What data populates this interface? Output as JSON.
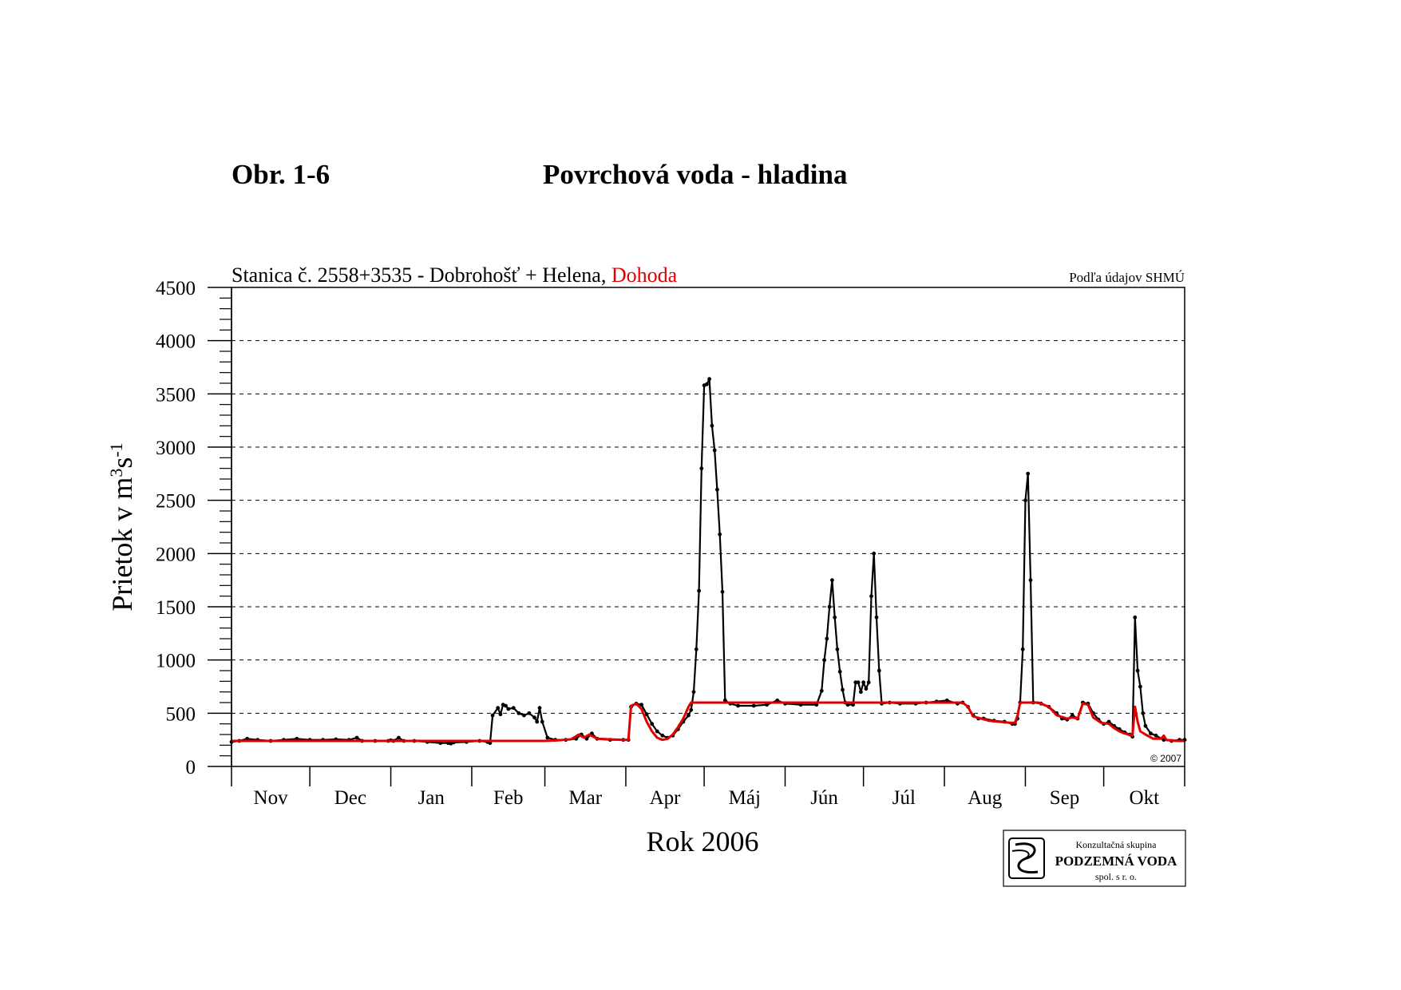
{
  "figure": {
    "number": "Obr. 1-6",
    "title": "Povrchová voda - hladina"
  },
  "chart_data": {
    "type": "line",
    "subtitle_prefix": "Stanica č. 2558+3535 - Dobrohošť + Helena, ",
    "subtitle_highlight": "Dohoda",
    "source_note": "Podľa údajov SHMÚ",
    "copyright": "© 2007",
    "ylabel_main": "Prietok v m",
    "ylabel_sup1": "3",
    "ylabel_mid": "s",
    "ylabel_sup2": "-1",
    "xlabel": "Rok 2006",
    "ylim": [
      0,
      4500
    ],
    "yticks": [
      0,
      500,
      1000,
      1500,
      2000,
      2500,
      3000,
      3500,
      4000,
      4500
    ],
    "grid": "horizontal dashed",
    "x_range_days": [
      0,
      365
    ],
    "month_labels": [
      "Nov",
      "Dec",
      "Jan",
      "Feb",
      "Mar",
      "Apr",
      "Máj",
      "Jún",
      "Júl",
      "Aug",
      "Sep",
      "Okt"
    ],
    "month_days": [
      30,
      31,
      31,
      28,
      31,
      30,
      31,
      30,
      31,
      31,
      30,
      31
    ],
    "series": [
      {
        "name": "Dobrohošť + Helena",
        "color": "#000000",
        "points": [
          [
            0,
            230
          ],
          [
            3,
            240
          ],
          [
            6,
            260
          ],
          [
            10,
            250
          ],
          [
            15,
            240
          ],
          [
            20,
            250
          ],
          [
            25,
            260
          ],
          [
            30,
            250
          ],
          [
            35,
            250
          ],
          [
            40,
            255
          ],
          [
            45,
            250
          ],
          [
            48,
            270
          ],
          [
            50,
            240
          ],
          [
            55,
            240
          ],
          [
            60,
            240
          ],
          [
            61,
            245
          ],
          [
            62,
            240
          ],
          [
            64,
            270
          ],
          [
            66,
            240
          ],
          [
            70,
            240
          ],
          [
            75,
            230
          ],
          [
            80,
            220
          ],
          [
            83,
            220
          ],
          [
            84,
            215
          ],
          [
            85,
            230
          ],
          [
            90,
            230
          ],
          [
            95,
            240
          ],
          [
            98,
            230
          ],
          [
            99,
            220
          ],
          [
            85,
            225
          ],
          [
            100,
            480
          ],
          [
            102,
            550
          ],
          [
            103,
            490
          ],
          [
            104,
            580
          ],
          [
            105,
            570
          ],
          [
            106,
            540
          ],
          [
            108,
            550
          ],
          [
            110,
            500
          ],
          [
            112,
            480
          ],
          [
            114,
            500
          ],
          [
            116,
            460
          ],
          [
            117,
            420
          ],
          [
            118,
            550
          ],
          [
            119,
            420
          ],
          [
            121,
            270
          ],
          [
            124,
            250
          ],
          [
            128,
            250
          ],
          [
            132,
            260
          ],
          [
            134,
            300
          ],
          [
            136,
            260
          ],
          [
            138,
            310
          ],
          [
            140,
            260
          ],
          [
            145,
            250
          ],
          [
            150,
            250
          ],
          [
            152,
            250
          ],
          [
            153,
            560
          ],
          [
            155,
            590
          ],
          [
            157,
            580
          ],
          [
            159,
            490
          ],
          [
            161,
            400
          ],
          [
            163,
            330
          ],
          [
            165,
            290
          ],
          [
            167,
            270
          ],
          [
            169,
            290
          ],
          [
            171,
            350
          ],
          [
            173,
            420
          ],
          [
            175,
            480
          ],
          [
            176,
            530
          ],
          [
            177,
            700
          ],
          [
            178,
            1100
          ],
          [
            179,
            1650
          ],
          [
            180,
            2800
          ],
          [
            181,
            3580
          ],
          [
            182,
            3590
          ],
          [
            183,
            3640
          ],
          [
            184,
            3200
          ],
          [
            185,
            2970
          ],
          [
            186,
            2600
          ],
          [
            187,
            2180
          ],
          [
            188,
            1640
          ],
          [
            189,
            620
          ],
          [
            191,
            590
          ],
          [
            194,
            570
          ],
          [
            200,
            570
          ],
          [
            205,
            580
          ],
          [
            209,
            620
          ],
          [
            212,
            590
          ],
          [
            218,
            580
          ],
          [
            224,
            580
          ],
          [
            226,
            710
          ],
          [
            227,
            1000
          ],
          [
            228,
            1200
          ],
          [
            229,
            1500
          ],
          [
            230,
            1750
          ],
          [
            231,
            1400
          ],
          [
            232,
            1100
          ],
          [
            233,
            890
          ],
          [
            234,
            720
          ],
          [
            235,
            600
          ],
          [
            236,
            580
          ],
          [
            238,
            580
          ],
          [
            239,
            790
          ],
          [
            240,
            790
          ],
          [
            241,
            700
          ],
          [
            242,
            790
          ],
          [
            243,
            730
          ],
          [
            244,
            790
          ],
          [
            245,
            1600
          ],
          [
            246,
            2000
          ],
          [
            247,
            1400
          ],
          [
            248,
            900
          ],
          [
            249,
            590
          ],
          [
            252,
            600
          ],
          [
            256,
            590
          ],
          [
            262,
            590
          ],
          [
            266,
            600
          ],
          [
            270,
            610
          ],
          [
            274,
            620
          ],
          [
            278,
            590
          ],
          [
            280,
            600
          ],
          [
            282,
            560
          ],
          [
            284,
            480
          ],
          [
            286,
            450
          ],
          [
            288,
            450
          ],
          [
            292,
            430
          ],
          [
            296,
            420
          ],
          [
            299,
            400
          ],
          [
            300,
            400
          ],
          [
            301,
            450
          ],
          [
            302,
            600
          ],
          [
            303,
            1100
          ],
          [
            304,
            2500
          ],
          [
            305,
            2750
          ],
          [
            306,
            1750
          ],
          [
            307,
            600
          ],
          [
            310,
            590
          ],
          [
            313,
            560
          ],
          [
            316,
            500
          ],
          [
            318,
            450
          ],
          [
            320,
            440
          ],
          [
            322,
            480
          ],
          [
            324,
            450
          ],
          [
            326,
            600
          ],
          [
            328,
            590
          ],
          [
            330,
            500
          ],
          [
            332,
            440
          ],
          [
            334,
            400
          ],
          [
            336,
            420
          ],
          [
            338,
            380
          ],
          [
            340,
            350
          ],
          [
            342,
            320
          ],
          [
            344,
            300
          ],
          [
            345,
            280
          ],
          [
            346,
            1400
          ],
          [
            347,
            900
          ],
          [
            348,
            750
          ],
          [
            349,
            500
          ],
          [
            350,
            380
          ],
          [
            352,
            310
          ],
          [
            354,
            290
          ],
          [
            357,
            250
          ],
          [
            360,
            240
          ],
          [
            363,
            250
          ],
          [
            365,
            250
          ]
        ]
      },
      {
        "name": "Dohoda",
        "color": "#e00000",
        "points": [
          [
            0,
            240
          ],
          [
            30,
            240
          ],
          [
            60,
            240
          ],
          [
            90,
            240
          ],
          [
            120,
            240
          ],
          [
            125,
            245
          ],
          [
            130,
            255
          ],
          [
            133,
            300
          ],
          [
            135,
            270
          ],
          [
            137,
            300
          ],
          [
            140,
            260
          ],
          [
            150,
            250
          ],
          [
            152,
            250
          ],
          [
            153,
            570
          ],
          [
            155,
            590
          ],
          [
            157,
            540
          ],
          [
            159,
            420
          ],
          [
            161,
            330
          ],
          [
            163,
            270
          ],
          [
            165,
            250
          ],
          [
            167,
            260
          ],
          [
            169,
            300
          ],
          [
            171,
            370
          ],
          [
            173,
            450
          ],
          [
            175,
            560
          ],
          [
            176,
            600
          ],
          [
            190,
            600
          ],
          [
            220,
            600
          ],
          [
            250,
            600
          ],
          [
            278,
            600
          ],
          [
            280,
            600
          ],
          [
            282,
            560
          ],
          [
            284,
            470
          ],
          [
            290,
            430
          ],
          [
            298,
            410
          ],
          [
            300,
            410
          ],
          [
            301,
            480
          ],
          [
            302,
            600
          ],
          [
            309,
            600
          ],
          [
            313,
            560
          ],
          [
            316,
            480
          ],
          [
            320,
            450
          ],
          [
            322,
            460
          ],
          [
            324,
            450
          ],
          [
            326,
            590
          ],
          [
            328,
            580
          ],
          [
            330,
            460
          ],
          [
            333,
            410
          ],
          [
            336,
            400
          ],
          [
            338,
            360
          ],
          [
            340,
            330
          ],
          [
            342,
            310
          ],
          [
            345,
            290
          ],
          [
            346,
            560
          ],
          [
            347,
            420
          ],
          [
            348,
            330
          ],
          [
            350,
            300
          ],
          [
            353,
            260
          ],
          [
            356,
            260
          ],
          [
            357,
            290
          ],
          [
            358,
            250
          ],
          [
            362,
            240
          ],
          [
            365,
            240
          ]
        ]
      }
    ]
  },
  "logo": {
    "line1": "Konzultačná skupina",
    "line2": "PODZEMNÁ VODA",
    "line3": "spol. s r. o."
  }
}
